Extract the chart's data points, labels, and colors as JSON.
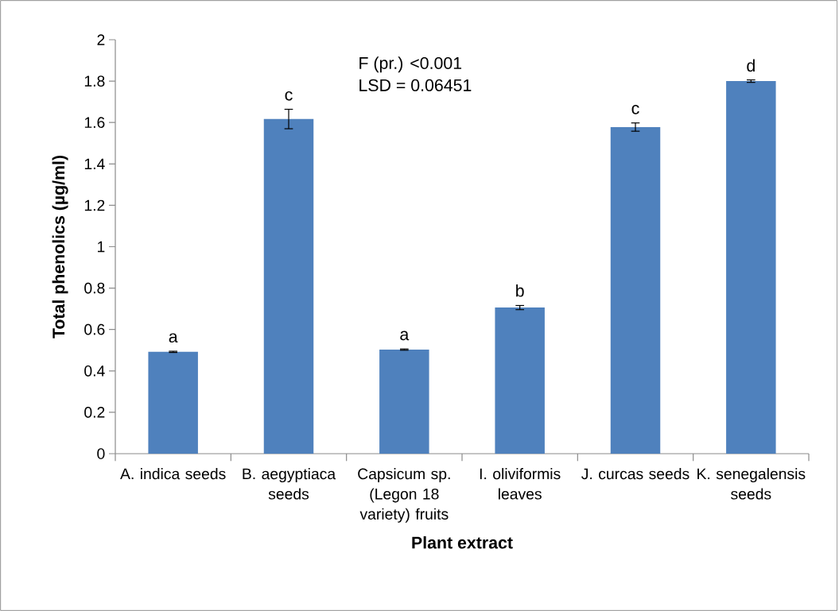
{
  "chart_data": {
    "type": "bar",
    "xlabel": "Plant extract",
    "ylabel": "Total phenolics (µg/ml)",
    "categories": [
      "A. indica seeds",
      "B. aegyptiaca seeds",
      "Capsicum sp. (Legon 18 variety) fruits",
      "I. oliviformis leaves",
      "J. curcas seeds",
      "K. senegalensis seeds"
    ],
    "values": [
      0.492,
      1.617,
      0.503,
      0.706,
      1.578,
      1.8
    ],
    "errors": [
      0.003,
      0.047,
      0.003,
      0.01,
      0.02,
      0.006
    ],
    "color": "#4f81bd",
    "ylim": [
      0,
      2
    ],
    "yticks": [
      0,
      0.2,
      0.4,
      0.6,
      0.8,
      1,
      1.2,
      1.4,
      1.6,
      1.8,
      2
    ],
    "grid": false,
    "legend": false,
    "annotations": [
      "F (pr.) <0.001",
      "LSD = 0.06451",
      {
        "text": "a",
        "x": "A. indica seeds",
        "y": 0.495
      },
      {
        "text": "c",
        "x": "B. aegyptiaca seeds",
        "y": 1.664
      },
      {
        "text": "a",
        "x": "Capsicum sp. (Legon 18 variety) fruits",
        "y": 0.506
      },
      {
        "text": "b",
        "x": "I. oliviformis leaves",
        "y": 0.716
      },
      {
        "text": "c",
        "x": "J. curcas seeds",
        "y": 1.598
      },
      {
        "text": "d",
        "x": "K. senegalensis seeds",
        "y": 1.804
      }
    ]
  }
}
